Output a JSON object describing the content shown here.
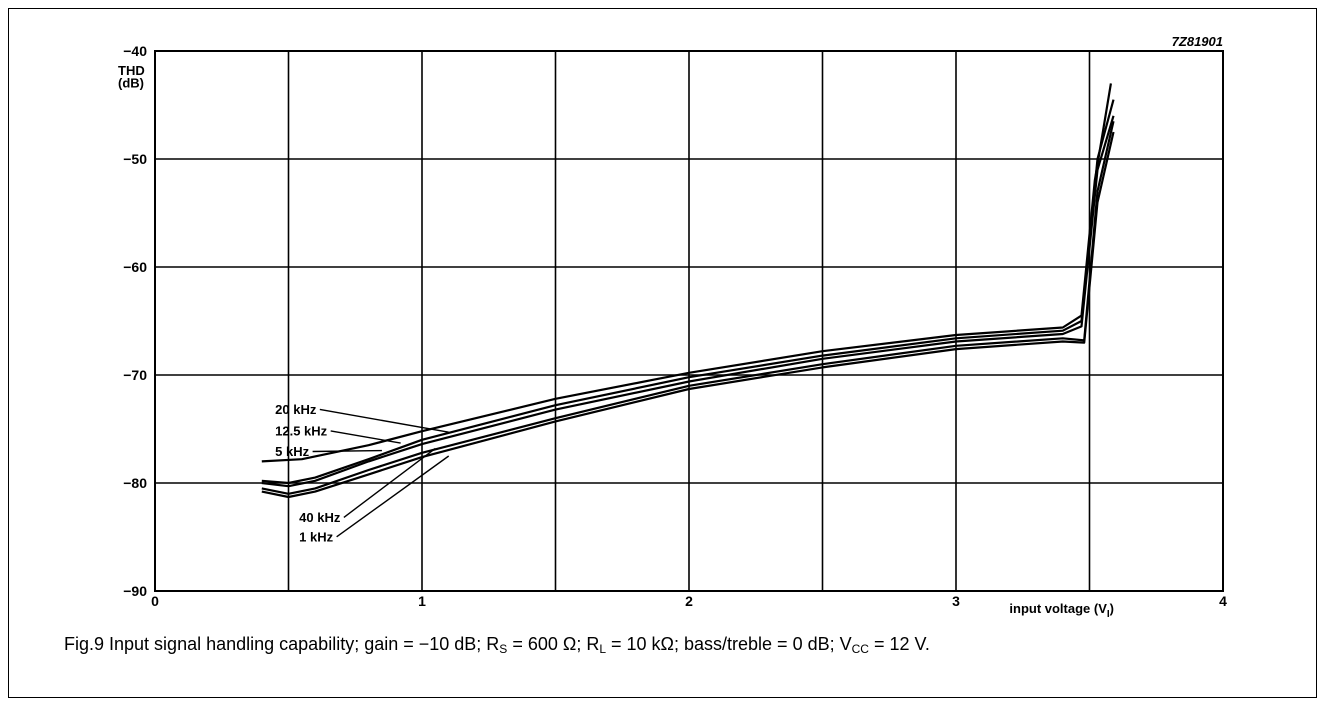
{
  "chart_data": {
    "type": "line",
    "figure_code": "7Z81901",
    "ylabel_line1": "THD",
    "ylabel_line2": "(dB)",
    "xlabel_main": "input voltage (V",
    "xlabel_sub": "I",
    "xlabel_end": ")",
    "xlim": [
      0,
      4
    ],
    "ylim": [
      -90,
      -40
    ],
    "grid": true,
    "x_ticks": [
      0,
      1,
      2,
      3,
      4
    ],
    "x_tick_labels": [
      "0",
      "1",
      "2",
      "3",
      "4"
    ],
    "y_ticks": [
      -90,
      -80,
      -70,
      -60,
      -50,
      -40
    ],
    "y_tick_labels": [
      "−90",
      "−80",
      "−70",
      "−60",
      "−50",
      "−40"
    ],
    "series": [
      {
        "name": "20 kHz",
        "x": [
          0.4,
          0.55,
          0.8,
          1.0,
          1.5,
          2.0,
          2.5,
          3.0,
          3.4,
          3.47,
          3.52,
          3.58
        ],
        "y": [
          -78.0,
          -77.8,
          -76.5,
          -75.2,
          -72.2,
          -69.8,
          -67.8,
          -66.3,
          -65.6,
          -64.5,
          -52.0,
          -43.0
        ]
      },
      {
        "name": "12.5 kHz",
        "x": [
          0.4,
          0.5,
          0.6,
          0.8,
          1.0,
          1.5,
          2.0,
          2.5,
          3.0,
          3.4,
          3.47,
          3.53,
          3.59
        ],
        "y": [
          -79.8,
          -80.0,
          -79.5,
          -77.8,
          -76.0,
          -72.8,
          -70.2,
          -68.2,
          -66.6,
          -65.9,
          -65.0,
          -50.0,
          -44.5
        ]
      },
      {
        "name": "5 kHz",
        "x": [
          0.4,
          0.5,
          0.6,
          0.8,
          1.0,
          1.5,
          2.0,
          2.5,
          3.0,
          3.4,
          3.47,
          3.53,
          3.59
        ],
        "y": [
          -80.0,
          -80.3,
          -79.8,
          -78.0,
          -76.4,
          -73.2,
          -70.6,
          -68.5,
          -66.9,
          -66.2,
          -65.5,
          -51.0,
          -46.0
        ]
      },
      {
        "name": "40 kHz",
        "x": [
          0.4,
          0.5,
          0.6,
          0.8,
          1.0,
          1.5,
          2.0,
          2.5,
          3.0,
          3.4,
          3.48,
          3.53,
          3.59
        ],
        "y": [
          -80.5,
          -81.0,
          -80.5,
          -78.8,
          -77.2,
          -74.0,
          -71.0,
          -69.0,
          -67.3,
          -66.6,
          -66.8,
          -53.0,
          -46.5
        ]
      },
      {
        "name": "1 kHz",
        "x": [
          0.4,
          0.5,
          0.6,
          0.8,
          1.0,
          1.5,
          2.0,
          2.5,
          3.0,
          3.4,
          3.48,
          3.53,
          3.59
        ],
        "y": [
          -80.8,
          -81.3,
          -80.8,
          -79.2,
          -77.6,
          -74.3,
          -71.3,
          -69.3,
          -67.6,
          -66.9,
          -67.0,
          -54.0,
          -47.5
        ]
      }
    ],
    "annotations": [
      {
        "text": "20 kHz",
        "label_at": [
          0.45,
          -73.6
        ],
        "points_to": [
          1.1,
          -75.3
        ]
      },
      {
        "text": "12.5 kHz",
        "label_at": [
          0.45,
          -75.6
        ],
        "points_to": [
          0.92,
          -76.3
        ]
      },
      {
        "text": "5 kHz",
        "label_at": [
          0.45,
          -77.5
        ],
        "points_to": [
          0.85,
          -77.0
        ]
      },
      {
        "text": "40 kHz",
        "label_at": [
          0.54,
          -83.6
        ],
        "points_to": [
          1.05,
          -76.8
        ]
      },
      {
        "text": "1 kHz",
        "label_at": [
          0.54,
          -85.4
        ],
        "points_to": [
          1.1,
          -77.5
        ]
      }
    ]
  },
  "caption": {
    "p1": "Fig.9  Input signal handling capability; gain = −10 dB; R",
    "s1": "S",
    "p2": " = 600 Ω; R",
    "s2": "L",
    "p3": " = 10 kΩ; bass/treble = 0 dB; V",
    "s3": "CC",
    "p4": " = 12 V."
  },
  "colors": {
    "line": "#000000",
    "grid": "#000000",
    "background": "#ffffff"
  }
}
